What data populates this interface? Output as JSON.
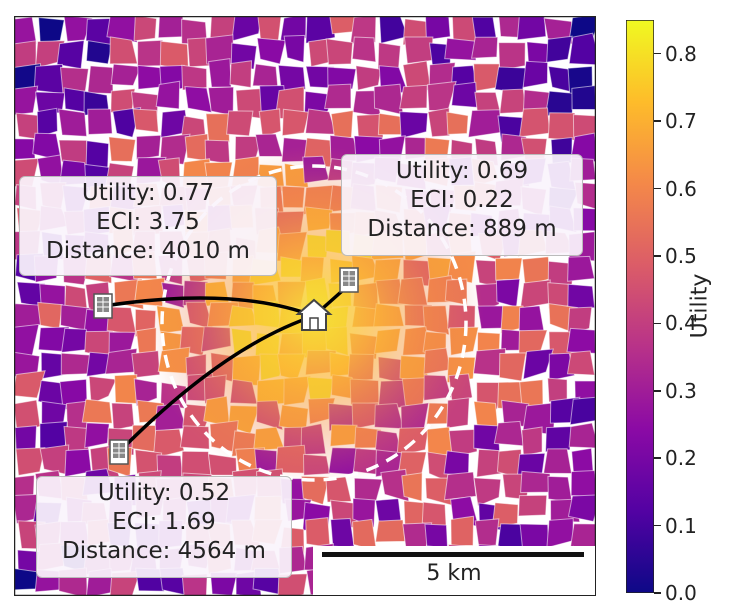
{
  "map": {
    "colormap": "plasma",
    "home_icon": "house-icon",
    "facility_icon": "building-icon",
    "locations": [
      {
        "id": "north-east",
        "utility": "Utility: 0.69",
        "eci": "ECI: 0.22",
        "distance": "Distance: 889 m"
      },
      {
        "id": "west",
        "utility": "Utility: 0.77",
        "eci": "ECI: 3.75",
        "distance": "Distance: 4010 m"
      },
      {
        "id": "south-west",
        "utility": "Utility: 0.52",
        "eci": "ECI: 1.69",
        "distance": "Distance: 4564 m"
      }
    ],
    "scale_bar": "5 km",
    "circle_style": "dashed white",
    "route_color": "#000000"
  },
  "colorbar": {
    "label": "Utility",
    "ticks": [
      "0.0",
      "0.1",
      "0.2",
      "0.3",
      "0.4",
      "0.5",
      "0.6",
      "0.7",
      "0.8"
    ],
    "min": 0.0,
    "max": 0.85,
    "colors": [
      "#0d0887",
      "#5302a3",
      "#8b0aa5",
      "#b83289",
      "#db5c68",
      "#f48849",
      "#febc2a",
      "#f0f921"
    ]
  }
}
